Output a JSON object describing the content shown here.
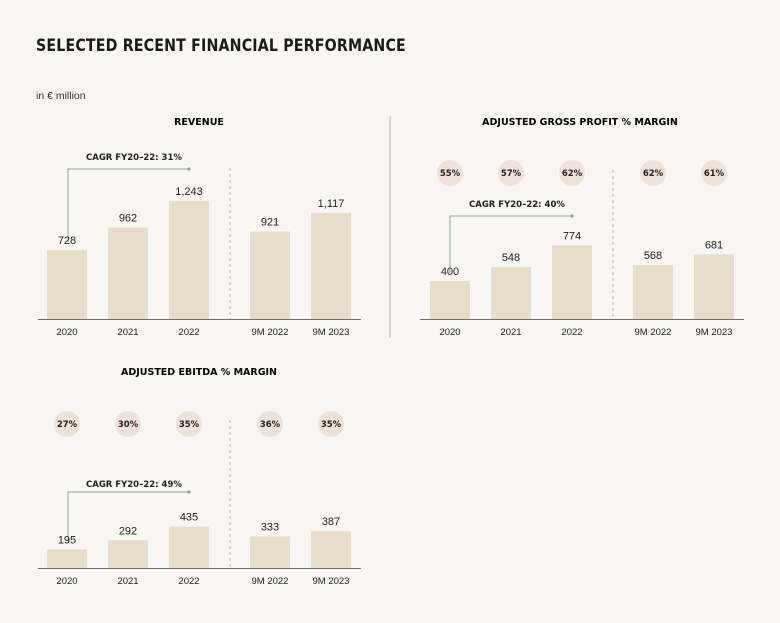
{
  "page": {
    "title": "SELECTED RECENT FINANCIAL PERFORMANCE",
    "unit_note": "in € million"
  },
  "colors": {
    "bar": "#e8dccb",
    "margin_badge": "#f0e2d8",
    "cagr_line": "#8fa39a",
    "axis": "#6e6e6e",
    "divider": "#a0a0a0"
  },
  "chart_data": [
    {
      "id": "revenue",
      "type": "bar",
      "title": "REVENUE",
      "categories": [
        "2020",
        "2021",
        "2022",
        "9M 2022",
        "9M 2023"
      ],
      "values": [
        728,
        962,
        1243,
        921,
        1117
      ],
      "value_labels": [
        "728",
        "962",
        "1,243",
        "921",
        "1,117"
      ],
      "margins": [],
      "cagr": "CAGR FY20–22: 31%",
      "ylim": [
        0,
        1400
      ]
    },
    {
      "id": "gross-profit",
      "type": "bar",
      "title": "ADJUSTED GROSS PROFIT % MARGIN",
      "categories": [
        "2020",
        "2021",
        "2022",
        "9M 2022",
        "9M 2023"
      ],
      "values": [
        400,
        548,
        774,
        568,
        681
      ],
      "value_labels": [
        "400",
        "548",
        "774",
        "568",
        "681"
      ],
      "margins": [
        "55%",
        "57%",
        "62%",
        "62%",
        "61%"
      ],
      "cagr": "CAGR FY20–22: 40%",
      "ylim": [
        0,
        1400
      ]
    },
    {
      "id": "ebitda",
      "type": "bar",
      "title": "ADJUSTED EBITDA % MARGIN",
      "categories": [
        "2020",
        "2021",
        "2022",
        "9M 2022",
        "9M 2023"
      ],
      "values": [
        195,
        292,
        435,
        333,
        387
      ],
      "value_labels": [
        "195",
        "292",
        "435",
        "333",
        "387"
      ],
      "margins": [
        "27%",
        "30%",
        "35%",
        "36%",
        "35%"
      ],
      "cagr": "CAGR FY20–22: 49%",
      "ylim": [
        0,
        1400
      ]
    }
  ]
}
